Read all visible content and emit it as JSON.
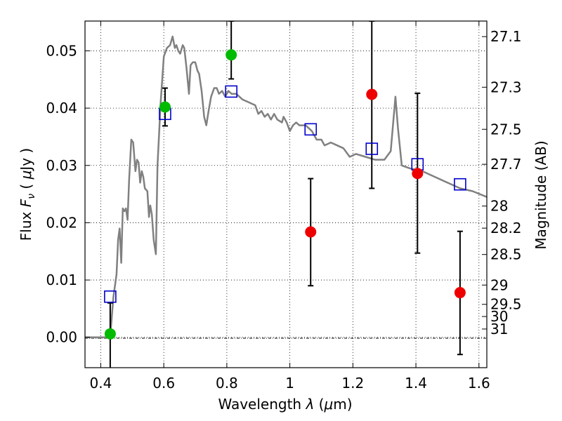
{
  "chart_data": {
    "type": "scatter",
    "title": "",
    "xlabel_parts": {
      "main": "Wavelength  ",
      "sym": "λ",
      "open": " (",
      "mu": "μ",
      "unit": "m)"
    },
    "ylabel_parts": {
      "main": "Flux  ",
      "sym": "F",
      "sub": "ν",
      "gap": "  ( ",
      "mu": "μ",
      "unit": "Jy )"
    },
    "y2label": "Magnitude (AB)",
    "xlim": [
      0.35,
      1.625
    ],
    "ylim": [
      -0.0053,
      0.0552
    ],
    "grid": true,
    "x_ticks": [
      {
        "v": 0.4,
        "label": "0.4"
      },
      {
        "v": 0.6,
        "label": "0.6"
      },
      {
        "v": 0.8,
        "label": "0.8"
      },
      {
        "v": 1.0,
        "label": "1"
      },
      {
        "v": 1.2,
        "label": "1.2"
      },
      {
        "v": 1.4,
        "label": "1.4"
      },
      {
        "v": 1.6,
        "label": "1.6"
      }
    ],
    "y_ticks": [
      {
        "v": 0.0,
        "label": "0.00"
      },
      {
        "v": 0.01,
        "label": "0.01"
      },
      {
        "v": 0.02,
        "label": "0.02"
      },
      {
        "v": 0.03,
        "label": "0.03"
      },
      {
        "v": 0.04,
        "label": "0.04"
      },
      {
        "v": 0.05,
        "label": "0.05"
      }
    ],
    "mag_ticks": [
      {
        "mag": 27.1,
        "label": "27.1"
      },
      {
        "mag": 27.3,
        "label": "27.3"
      },
      {
        "mag": 27.5,
        "label": "27.5"
      },
      {
        "mag": 27.7,
        "label": "27.7"
      },
      {
        "mag": 28.0,
        "label": "28"
      },
      {
        "mag": 28.2,
        "label": "28.2"
      },
      {
        "mag": 28.5,
        "label": "28.5"
      },
      {
        "mag": 29.0,
        "label": "29"
      },
      {
        "mag": 29.5,
        "label": "29.5"
      },
      {
        "mag": 30.0,
        "label": "30"
      },
      {
        "mag": 31.0,
        "label": "31"
      }
    ],
    "model_spectrum": {
      "color": "#808080",
      "points": [
        [
          0.35,
          0.0
        ],
        [
          0.38,
          0.0
        ],
        [
          0.41,
          0.0
        ],
        [
          0.425,
          0.0
        ],
        [
          0.432,
          0.0015
        ],
        [
          0.44,
          0.007
        ],
        [
          0.45,
          0.011
        ],
        [
          0.455,
          0.017
        ],
        [
          0.46,
          0.019
        ],
        [
          0.465,
          0.013
        ],
        [
          0.47,
          0.0225
        ],
        [
          0.475,
          0.022
        ],
        [
          0.48,
          0.0225
        ],
        [
          0.485,
          0.0205
        ],
        [
          0.49,
          0.0275
        ],
        [
          0.497,
          0.0345
        ],
        [
          0.503,
          0.034
        ],
        [
          0.51,
          0.029
        ],
        [
          0.515,
          0.031
        ],
        [
          0.52,
          0.0305
        ],
        [
          0.525,
          0.027
        ],
        [
          0.53,
          0.029
        ],
        [
          0.535,
          0.028
        ],
        [
          0.54,
          0.026
        ],
        [
          0.548,
          0.0255
        ],
        [
          0.553,
          0.021
        ],
        [
          0.557,
          0.023
        ],
        [
          0.562,
          0.0215
        ],
        [
          0.568,
          0.017
        ],
        [
          0.575,
          0.0145
        ],
        [
          0.58,
          0.03
        ],
        [
          0.59,
          0.041
        ],
        [
          0.6,
          0.049
        ],
        [
          0.61,
          0.0505
        ],
        [
          0.62,
          0.051
        ],
        [
          0.628,
          0.0525
        ],
        [
          0.635,
          0.0505
        ],
        [
          0.64,
          0.051
        ],
        [
          0.646,
          0.05
        ],
        [
          0.652,
          0.0495
        ],
        [
          0.66,
          0.051
        ],
        [
          0.665,
          0.0505
        ],
        [
          0.672,
          0.047
        ],
        [
          0.68,
          0.0425
        ],
        [
          0.685,
          0.0475
        ],
        [
          0.692,
          0.048
        ],
        [
          0.7,
          0.048
        ],
        [
          0.707,
          0.0465
        ],
        [
          0.712,
          0.046
        ],
        [
          0.72,
          0.043
        ],
        [
          0.728,
          0.0385
        ],
        [
          0.735,
          0.037
        ],
        [
          0.742,
          0.0395
        ],
        [
          0.75,
          0.042
        ],
        [
          0.76,
          0.0435
        ],
        [
          0.768,
          0.0435
        ],
        [
          0.775,
          0.0425
        ],
        [
          0.785,
          0.043
        ],
        [
          0.795,
          0.042
        ],
        [
          0.805,
          0.043
        ],
        [
          0.815,
          0.0425
        ],
        [
          0.83,
          0.0425
        ],
        [
          0.85,
          0.0415
        ],
        [
          0.87,
          0.041
        ],
        [
          0.89,
          0.0405
        ],
        [
          0.9,
          0.039
        ],
        [
          0.91,
          0.0395
        ],
        [
          0.92,
          0.0385
        ],
        [
          0.93,
          0.039
        ],
        [
          0.94,
          0.038
        ],
        [
          0.95,
          0.039
        ],
        [
          0.96,
          0.038
        ],
        [
          0.975,
          0.0375
        ],
        [
          0.98,
          0.0385
        ],
        [
          0.99,
          0.0375
        ],
        [
          1.0,
          0.036
        ],
        [
          1.01,
          0.037
        ],
        [
          1.02,
          0.0375
        ],
        [
          1.03,
          0.037
        ],
        [
          1.05,
          0.037
        ],
        [
          1.07,
          0.036
        ],
        [
          1.085,
          0.0345
        ],
        [
          1.1,
          0.0345
        ],
        [
          1.11,
          0.0335
        ],
        [
          1.13,
          0.034
        ],
        [
          1.15,
          0.0335
        ],
        [
          1.17,
          0.033
        ],
        [
          1.19,
          0.0315
        ],
        [
          1.21,
          0.032
        ],
        [
          1.24,
          0.0315
        ],
        [
          1.27,
          0.031
        ],
        [
          1.3,
          0.031
        ],
        [
          1.32,
          0.0325
        ],
        [
          1.335,
          0.042
        ],
        [
          1.343,
          0.0365
        ],
        [
          1.355,
          0.03
        ],
        [
          1.38,
          0.0295
        ],
        [
          1.42,
          0.029
        ],
        [
          1.46,
          0.028
        ],
        [
          1.5,
          0.027
        ],
        [
          1.54,
          0.026
        ],
        [
          1.58,
          0.0255
        ],
        [
          1.625,
          0.0245
        ]
      ]
    },
    "series": [
      {
        "marker": "open-square",
        "color": "#0000cc",
        "points": [
          [
            0.43,
            0.0071
          ],
          [
            0.604,
            0.039
          ],
          [
            0.814,
            0.0429
          ],
          [
            1.066,
            0.0363
          ],
          [
            1.26,
            0.0329
          ],
          [
            1.405,
            0.0302
          ],
          [
            1.54,
            0.0267
          ]
        ]
      },
      {
        "marker": "filled-circle",
        "color": "#00bb00",
        "points": [
          [
            0.43,
            0.0006,
            -0.006,
            0.006
          ],
          [
            0.604,
            0.0402,
            0.0369,
            0.0435
          ],
          [
            0.814,
            0.0493,
            0.0451,
            0.0552
          ]
        ]
      },
      {
        "marker": "filled-circle",
        "color": "#ee0000",
        "points": [
          [
            1.066,
            0.0184,
            0.009,
            0.0277
          ],
          [
            1.26,
            0.0424,
            0.026,
            0.0552
          ],
          [
            1.405,
            0.0286,
            0.0147,
            0.0426
          ],
          [
            1.54,
            0.0078,
            -0.003,
            0.0185
          ]
        ]
      }
    ]
  }
}
